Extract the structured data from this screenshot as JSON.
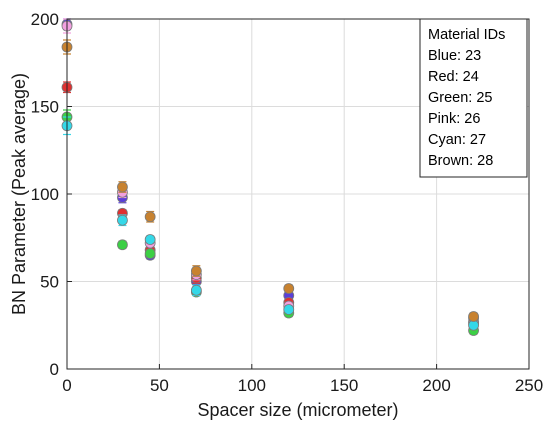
{
  "chart_data": {
    "type": "scatter",
    "xlabel": "Spacer size (micrometer)",
    "ylabel": "BN Parameter (Peak average)",
    "xlim": [
      0,
      250
    ],
    "ylim": [
      0,
      200
    ],
    "xticks": [
      0,
      50,
      100,
      150,
      200,
      250
    ],
    "yticks": [
      0,
      50,
      100,
      150,
      200
    ],
    "grid": true,
    "legend": {
      "placement": "top-right",
      "title": "Material IDs",
      "entries": [
        "Blue: 23",
        "Red: 24",
        "Green: 25",
        "Pink: 26",
        "Cyan: 27",
        "Brown: 28"
      ]
    },
    "series": [
      {
        "color": "#5a3fd8",
        "points": [
          [
            0,
            197,
            3
          ],
          [
            30,
            98,
            3
          ],
          [
            45,
            65,
            2
          ],
          [
            70,
            50,
            3
          ],
          [
            120,
            42,
            2
          ],
          [
            220,
            29,
            2
          ]
        ]
      },
      {
        "color": "#e03030",
        "points": [
          [
            0,
            161,
            3
          ],
          [
            30,
            89,
            2
          ],
          [
            45,
            68,
            2
          ],
          [
            70,
            52,
            3
          ],
          [
            120,
            38,
            2
          ],
          [
            220,
            27,
            2
          ]
        ]
      },
      {
        "color": "#3ccf45",
        "points": [
          [
            0,
            144,
            4
          ],
          [
            30,
            71,
            2
          ],
          [
            45,
            66,
            2
          ],
          [
            70,
            44,
            2
          ],
          [
            120,
            32,
            2
          ],
          [
            220,
            22,
            2
          ]
        ]
      },
      {
        "color": "#f2a0e0",
        "points": [
          [
            0,
            196,
            4
          ],
          [
            30,
            101,
            3
          ],
          [
            45,
            72,
            2
          ],
          [
            70,
            54,
            3
          ],
          [
            120,
            36,
            2
          ],
          [
            220,
            26,
            2
          ]
        ]
      },
      {
        "color": "#34d8e8",
        "points": [
          [
            0,
            139,
            5
          ],
          [
            30,
            85,
            3
          ],
          [
            45,
            74,
            2
          ],
          [
            70,
            45,
            3
          ],
          [
            120,
            34,
            2
          ],
          [
            220,
            25,
            2
          ]
        ]
      },
      {
        "color": "#c8822f",
        "points": [
          [
            0,
            184,
            4
          ],
          [
            30,
            104,
            3
          ],
          [
            45,
            87,
            3
          ],
          [
            70,
            56,
            3
          ],
          [
            120,
            46,
            2
          ],
          [
            220,
            30,
            2
          ]
        ]
      }
    ]
  }
}
